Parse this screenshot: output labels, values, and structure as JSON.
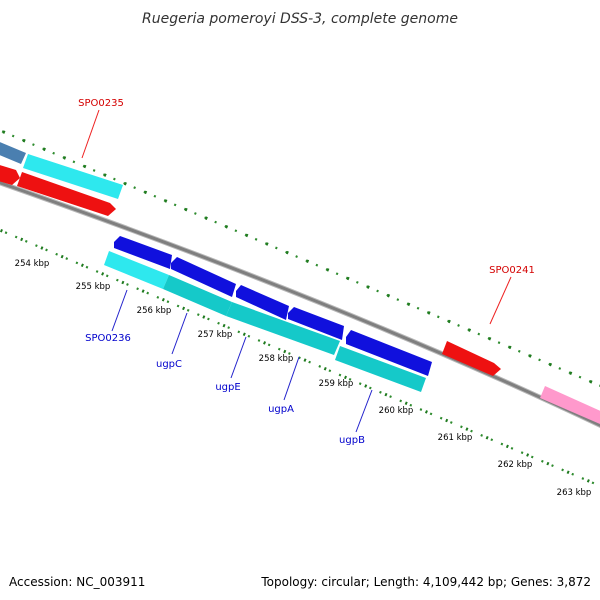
{
  "title": "Ruegeria pomeroyi DSS-3, complete genome",
  "footer": {
    "accession": "Accession: NC_003911",
    "topology": "Topology: circular; Length: 4,109,442 bp; Genes: 3,872"
  },
  "colors": {
    "backbone": "#7f7f7f",
    "tick_dot": "#2e8b2e",
    "tick_major": "#1f7a1f",
    "forward_label": "#d40000",
    "reverse_label": "#0000cc"
  },
  "ticks": [
    {
      "kbp": 254,
      "label": "254 kbp"
    },
    {
      "kbp": 255,
      "label": "255 kbp"
    },
    {
      "kbp": 256,
      "label": "256 kbp"
    },
    {
      "kbp": 257,
      "label": "257 kbp"
    },
    {
      "kbp": 258,
      "label": "258 kbp"
    },
    {
      "kbp": 259,
      "label": "259 kbp"
    },
    {
      "kbp": 260,
      "label": "260 kbp"
    },
    {
      "kbp": 261,
      "label": "261 kbp"
    },
    {
      "kbp": 262,
      "label": "262 kbp"
    },
    {
      "kbp": 263,
      "label": "263 kbp"
    }
  ],
  "gene_labels": [
    {
      "id": "lbl-spo0235",
      "text": "SPO0235",
      "strand": "forward"
    },
    {
      "id": "lbl-spo0241",
      "text": "SPO0241",
      "strand": "forward"
    },
    {
      "id": "lbl-spo0236",
      "text": "SPO0236",
      "strand": "reverse"
    },
    {
      "id": "lbl-ugpc",
      "text": "ugpC",
      "strand": "reverse"
    },
    {
      "id": "lbl-ugpe",
      "text": "ugpE",
      "strand": "reverse"
    },
    {
      "id": "lbl-ugpa",
      "text": "ugpA",
      "strand": "reverse"
    },
    {
      "id": "lbl-ugpb",
      "text": "ugpB",
      "strand": "reverse"
    }
  ]
}
